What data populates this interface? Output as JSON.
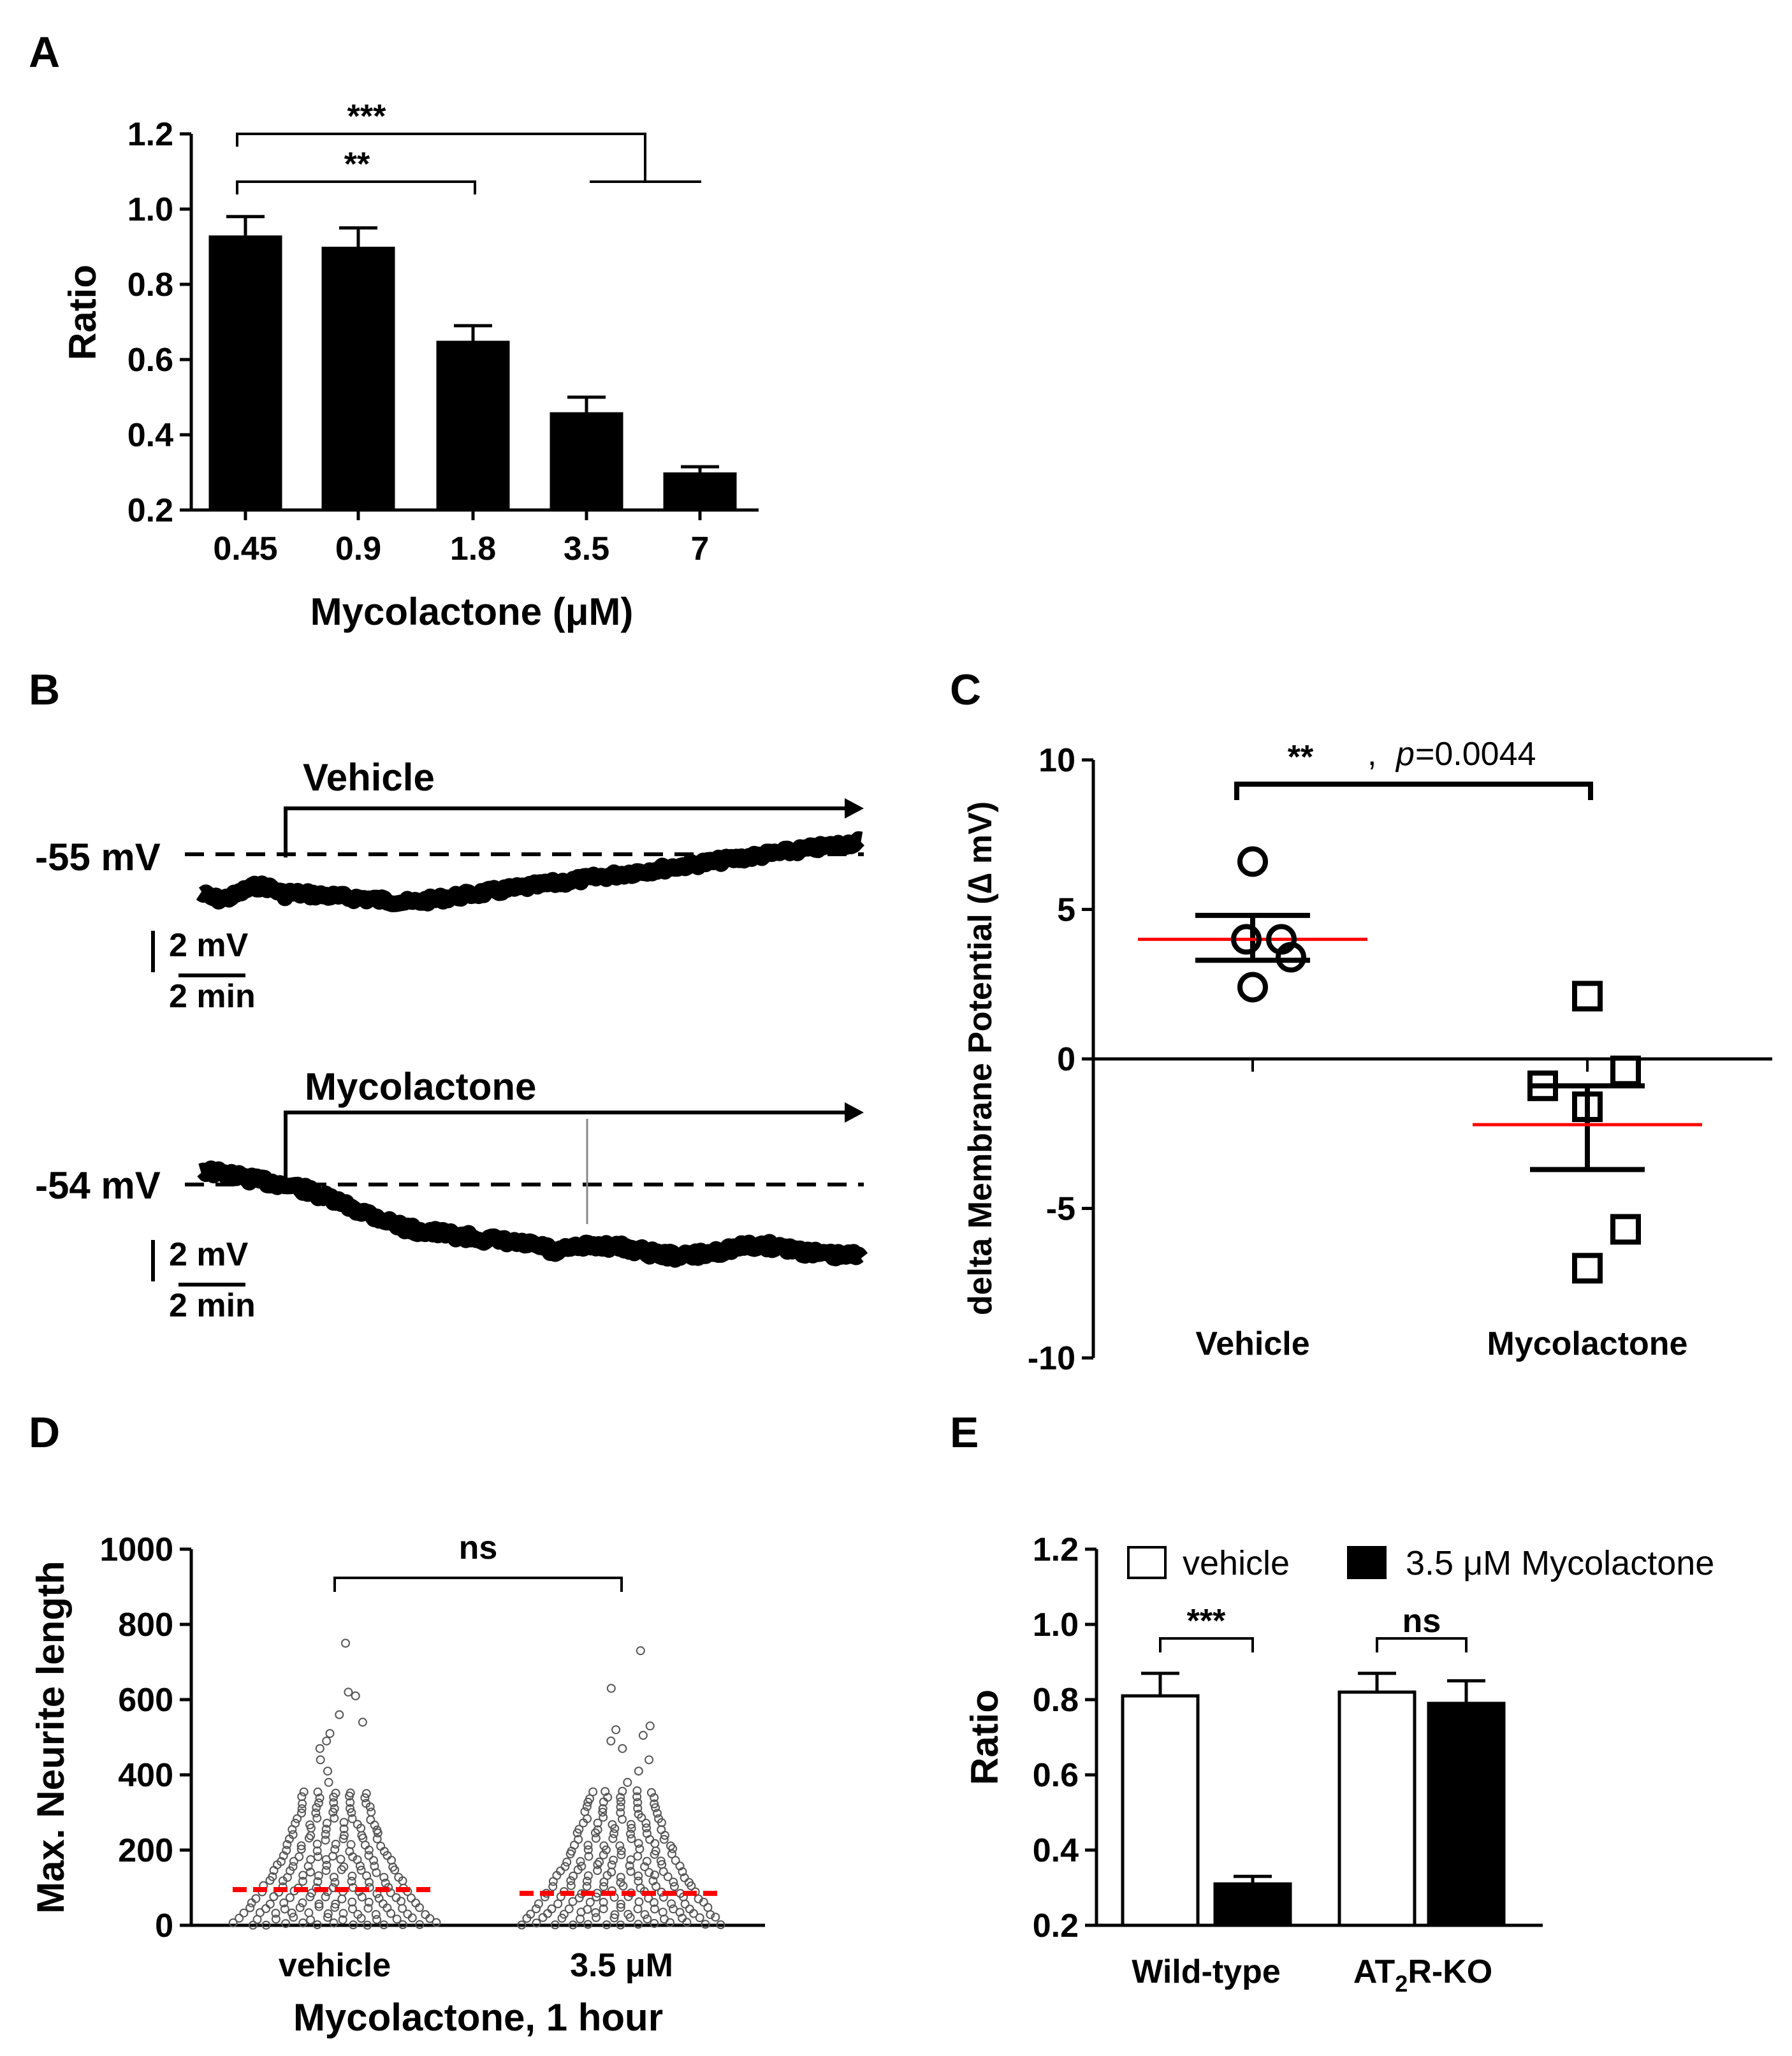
{
  "figure": {
    "panels": {
      "A": "A",
      "B": "B",
      "C": "C",
      "D": "D",
      "E": "E"
    }
  },
  "colors": {
    "mean_line": "#ff0000",
    "bar_fill": "#000000",
    "bar_open": "#ffffff"
  },
  "chart_data": [
    {
      "id": "A",
      "type": "bar",
      "categories": [
        "0.45",
        "0.9",
        "1.8",
        "3.5",
        "7"
      ],
      "values": [
        0.93,
        0.9,
        0.65,
        0.46,
        0.3
      ],
      "errors": [
        0.05,
        0.05,
        0.04,
        0.04,
        0.015
      ],
      "ylim": [
        0.2,
        1.2
      ],
      "yticks": [
        "0.2",
        "0.4",
        "0.6",
        "0.8",
        "1.0",
        "1.2"
      ],
      "xlabel": "Mycolactone (μM)",
      "ylabel": "Ratio",
      "significance": [
        {
          "label": "***",
          "from": "0.45",
          "to": "3.5–7"
        },
        {
          "label": "**",
          "from": "0.45",
          "to": "1.8"
        }
      ]
    },
    {
      "id": "B",
      "type": "line",
      "description_free": true,
      "traces": [
        {
          "label": "Vehicle",
          "baseline_label": "-55 mV",
          "scale_v": "2 mV",
          "scale_t": "2 min",
          "trend": "depolarizing"
        },
        {
          "label": "Mycolactone",
          "baseline_label": "-54 mV",
          "scale_v": "2 mV",
          "scale_t": "2 min",
          "trend": "hyperpolarizing"
        }
      ]
    },
    {
      "id": "C",
      "type": "scatter",
      "categories": [
        "Vehicle",
        "Mycolactone"
      ],
      "ylabel": "delta Membrane Potential (∆ mV)",
      "ylim": [
        -10,
        10
      ],
      "yticks": [
        "-10",
        "-5",
        "0",
        "5",
        "10"
      ],
      "series": [
        {
          "name": "Vehicle",
          "marker": "circle",
          "values": [
            6.6,
            4.0,
            4.0,
            3.4,
            2.4
          ],
          "mean": 4.0,
          "sem_low": 3.3,
          "sem_high": 4.8
        },
        {
          "name": "Mycolactone",
          "marker": "square",
          "values": [
            2.1,
            -0.9,
            -0.4,
            -1.6,
            -5.7,
            -7.0
          ],
          "mean": -2.2,
          "sem_low": -3.7,
          "sem_high": -0.9
        }
      ],
      "significance": {
        "stars": "**",
        "sep": ",",
        "p_italic": "p",
        "p_rest": "=0.0044"
      }
    },
    {
      "id": "D",
      "type": "scatter",
      "categories": [
        "vehicle",
        "3.5 μM"
      ],
      "xlabel": "Mycolactone, 1 hour",
      "ylabel": "Max. Neurite length",
      "ylim": [
        0,
        1000
      ],
      "yticks": [
        "0",
        "200",
        "400",
        "600",
        "800",
        "1000"
      ],
      "medians": [
        95,
        85
      ],
      "maxima": [
        750,
        730
      ],
      "significance": {
        "label": "ns"
      }
    },
    {
      "id": "E",
      "type": "bar",
      "categories": [
        "Wild-type",
        "AT2R-KO"
      ],
      "category_labels": {
        "wt": "Wild-type",
        "ko_pre": "AT",
        "ko_sub": "2",
        "ko_post": "R-KO"
      },
      "series": [
        {
          "name": "vehicle",
          "values": [
            0.81,
            0.82
          ],
          "errors": [
            0.06,
            0.05
          ]
        },
        {
          "name": "3.5 μM Mycolactone",
          "values": [
            0.31,
            0.79
          ],
          "errors": [
            0.02,
            0.06
          ]
        }
      ],
      "ylim": [
        0.2,
        1.2
      ],
      "yticks": [
        "0.2",
        "0.4",
        "0.6",
        "0.8",
        "1.0",
        "1.2"
      ],
      "ylabel": "Ratio",
      "legend": "top",
      "significance": [
        {
          "label": "***"
        },
        {
          "label": "ns"
        }
      ]
    }
  ]
}
